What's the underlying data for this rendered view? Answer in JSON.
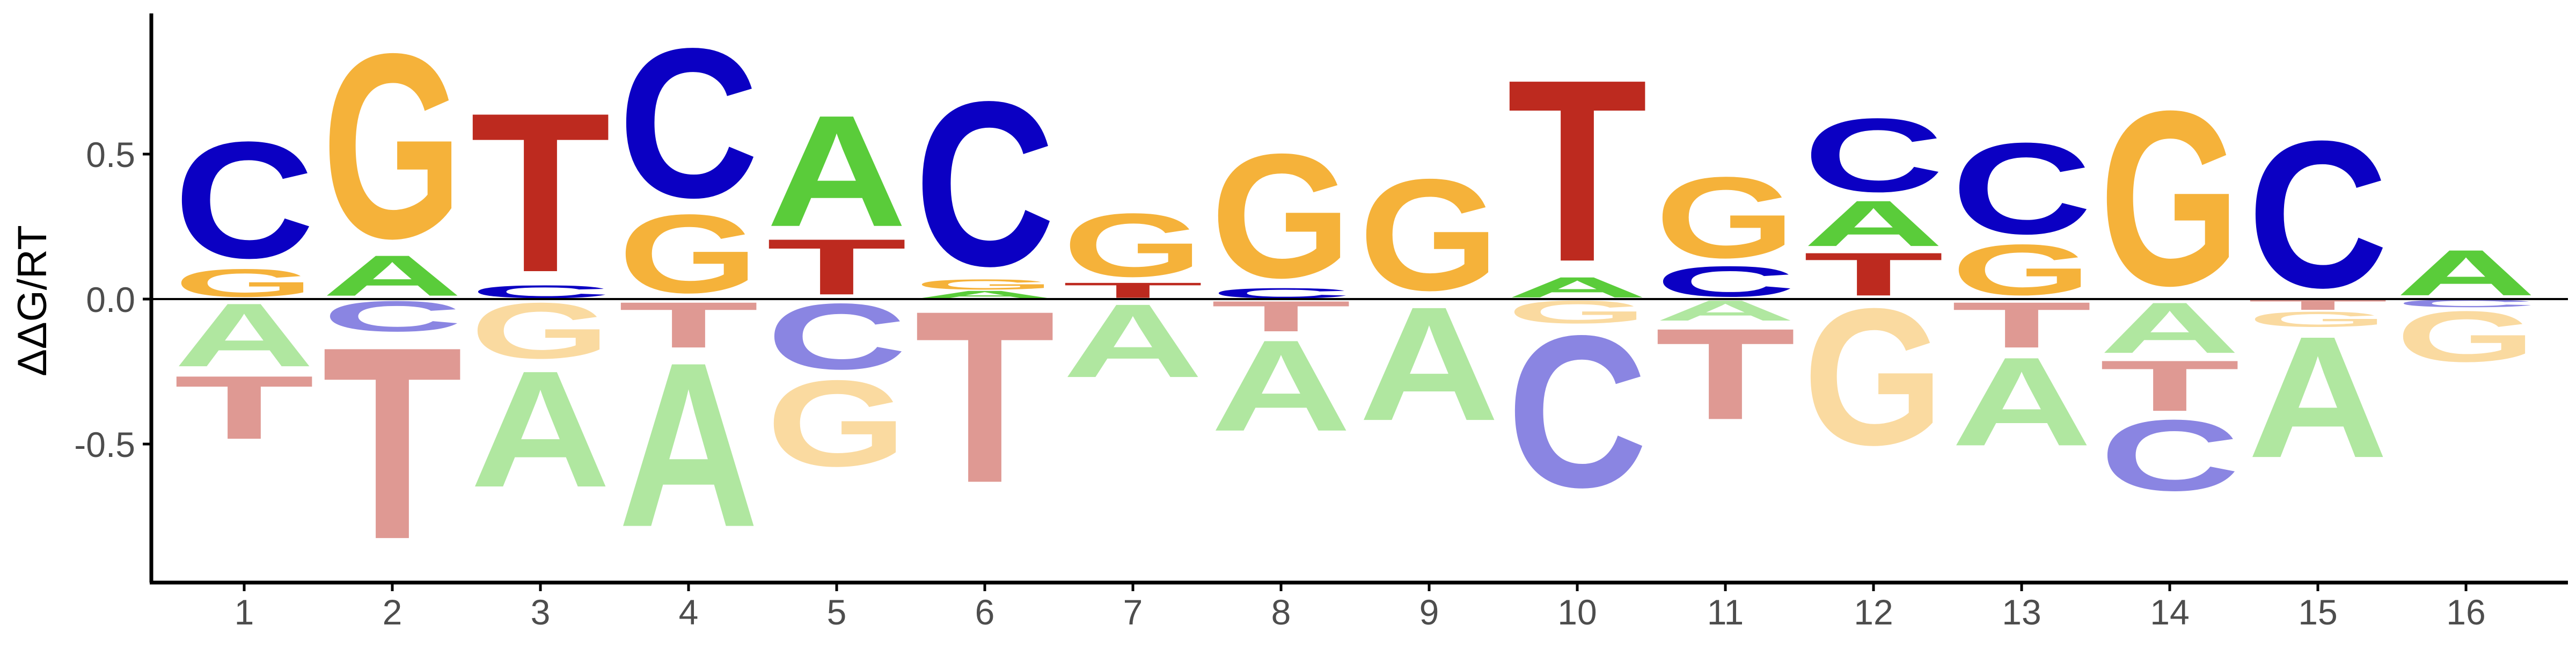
{
  "chart_data": {
    "type": "sequence-logo",
    "title": "",
    "xlabel": "",
    "ylabel": "ΔΔG/RT",
    "ylim": [
      -0.98,
      0.98
    ],
    "yticks": [
      0.5,
      0.0,
      -0.5
    ],
    "ytick_labels": [
      "0.5",
      "0.0",
      "-0.5"
    ],
    "zero_line": true,
    "grid": false,
    "legend": "none",
    "colors": {
      "A": "#5ACC3A",
      "C": "#0B00C3",
      "G": "#F5B23A",
      "T": "#BD2A1F"
    },
    "below_zero_faded": true,
    "positions": [
      {
        "label": "1",
        "above": [
          {
            "base": "G",
            "value": 0.11
          },
          {
            "base": "C",
            "value": 0.46
          }
        ],
        "below": [
          {
            "base": "A",
            "value": 0.25
          },
          {
            "base": "T",
            "value": 0.25
          }
        ]
      },
      {
        "label": "2",
        "above": [
          {
            "base": "A",
            "value": 0.16
          },
          {
            "base": "G",
            "value": 0.73
          }
        ],
        "below": [
          {
            "base": "C",
            "value": 0.12
          },
          {
            "base": "T",
            "value": 0.76
          }
        ]
      },
      {
        "label": "3",
        "above": [
          {
            "base": "C",
            "value": 0.05
          },
          {
            "base": "T",
            "value": 0.63
          }
        ],
        "below": [
          {
            "base": "G",
            "value": 0.22
          },
          {
            "base": "A",
            "value": 0.46
          }
        ]
      },
      {
        "label": "4",
        "above": [
          {
            "base": "G",
            "value": 0.31
          },
          {
            "base": "C",
            "value": 0.59
          }
        ],
        "below": [
          {
            "base": "T",
            "value": 0.18
          },
          {
            "base": "A",
            "value": 0.65
          }
        ]
      },
      {
        "label": "5",
        "above": [
          {
            "base": "T",
            "value": 0.22
          },
          {
            "base": "A",
            "value": 0.44
          }
        ],
        "below": [
          {
            "base": "C",
            "value": 0.26
          },
          {
            "base": "G",
            "value": 0.34
          }
        ]
      },
      {
        "label": "6",
        "above": [
          {
            "base": "A",
            "value": 0.03
          },
          {
            "base": "G",
            "value": 0.04
          },
          {
            "base": "C",
            "value": 0.65
          }
        ],
        "below": [
          {
            "base": "T",
            "value": 0.68
          }
        ]
      },
      {
        "label": "7",
        "above": [
          {
            "base": "T",
            "value": 0.06
          },
          {
            "base": "G",
            "value": 0.25
          }
        ],
        "below": [
          {
            "base": "A",
            "value": 0.29
          }
        ]
      },
      {
        "label": "8",
        "above": [
          {
            "base": "C",
            "value": 0.04
          },
          {
            "base": "G",
            "value": 0.49
          }
        ],
        "below": [
          {
            "base": "T",
            "value": 0.12
          },
          {
            "base": "A",
            "value": 0.36
          }
        ]
      },
      {
        "label": "9",
        "above": [
          {
            "base": "G",
            "value": 0.44
          }
        ],
        "below": [
          {
            "base": "A",
            "value": 0.45
          }
        ]
      },
      {
        "label": "10",
        "above": [
          {
            "base": "A",
            "value": 0.08
          },
          {
            "base": "T",
            "value": 0.72
          }
        ],
        "below": [
          {
            "base": "G",
            "value": 0.09
          },
          {
            "base": "C",
            "value": 0.6
          }
        ]
      },
      {
        "label": "11",
        "above": [
          {
            "base": "C",
            "value": 0.12
          },
          {
            "base": "G",
            "value": 0.32
          }
        ],
        "below": [
          {
            "base": "A",
            "value": 0.08
          },
          {
            "base": "T",
            "value": 0.36
          }
        ]
      },
      {
        "label": "12",
        "above": [
          {
            "base": "T",
            "value": 0.17
          },
          {
            "base": "A",
            "value": 0.18
          },
          {
            "base": "C",
            "value": 0.29
          }
        ],
        "below": [
          {
            "base": "G",
            "value": 0.54
          }
        ]
      },
      {
        "label": "13",
        "above": [
          {
            "base": "G",
            "value": 0.2
          },
          {
            "base": "C",
            "value": 0.36
          }
        ],
        "below": [
          {
            "base": "T",
            "value": 0.18
          },
          {
            "base": "A",
            "value": 0.35
          }
        ]
      },
      {
        "label": "14",
        "above": [
          {
            "base": "G",
            "value": 0.69
          }
        ],
        "below": [
          {
            "base": "A",
            "value": 0.2
          },
          {
            "base": "T",
            "value": 0.2
          },
          {
            "base": "C",
            "value": 0.28
          }
        ]
      },
      {
        "label": "15",
        "above": [
          {
            "base": "C",
            "value": 0.58
          }
        ],
        "below": [
          {
            "base": "T",
            "value": 0.04
          },
          {
            "base": "G",
            "value": 0.06
          },
          {
            "base": "A",
            "value": 0.48
          }
        ]
      },
      {
        "label": "16",
        "above": [
          {
            "base": "A",
            "value": 0.18
          }
        ],
        "below": [
          {
            "base": "C",
            "value": 0.03
          },
          {
            "base": "G",
            "value": 0.2
          }
        ]
      }
    ]
  }
}
